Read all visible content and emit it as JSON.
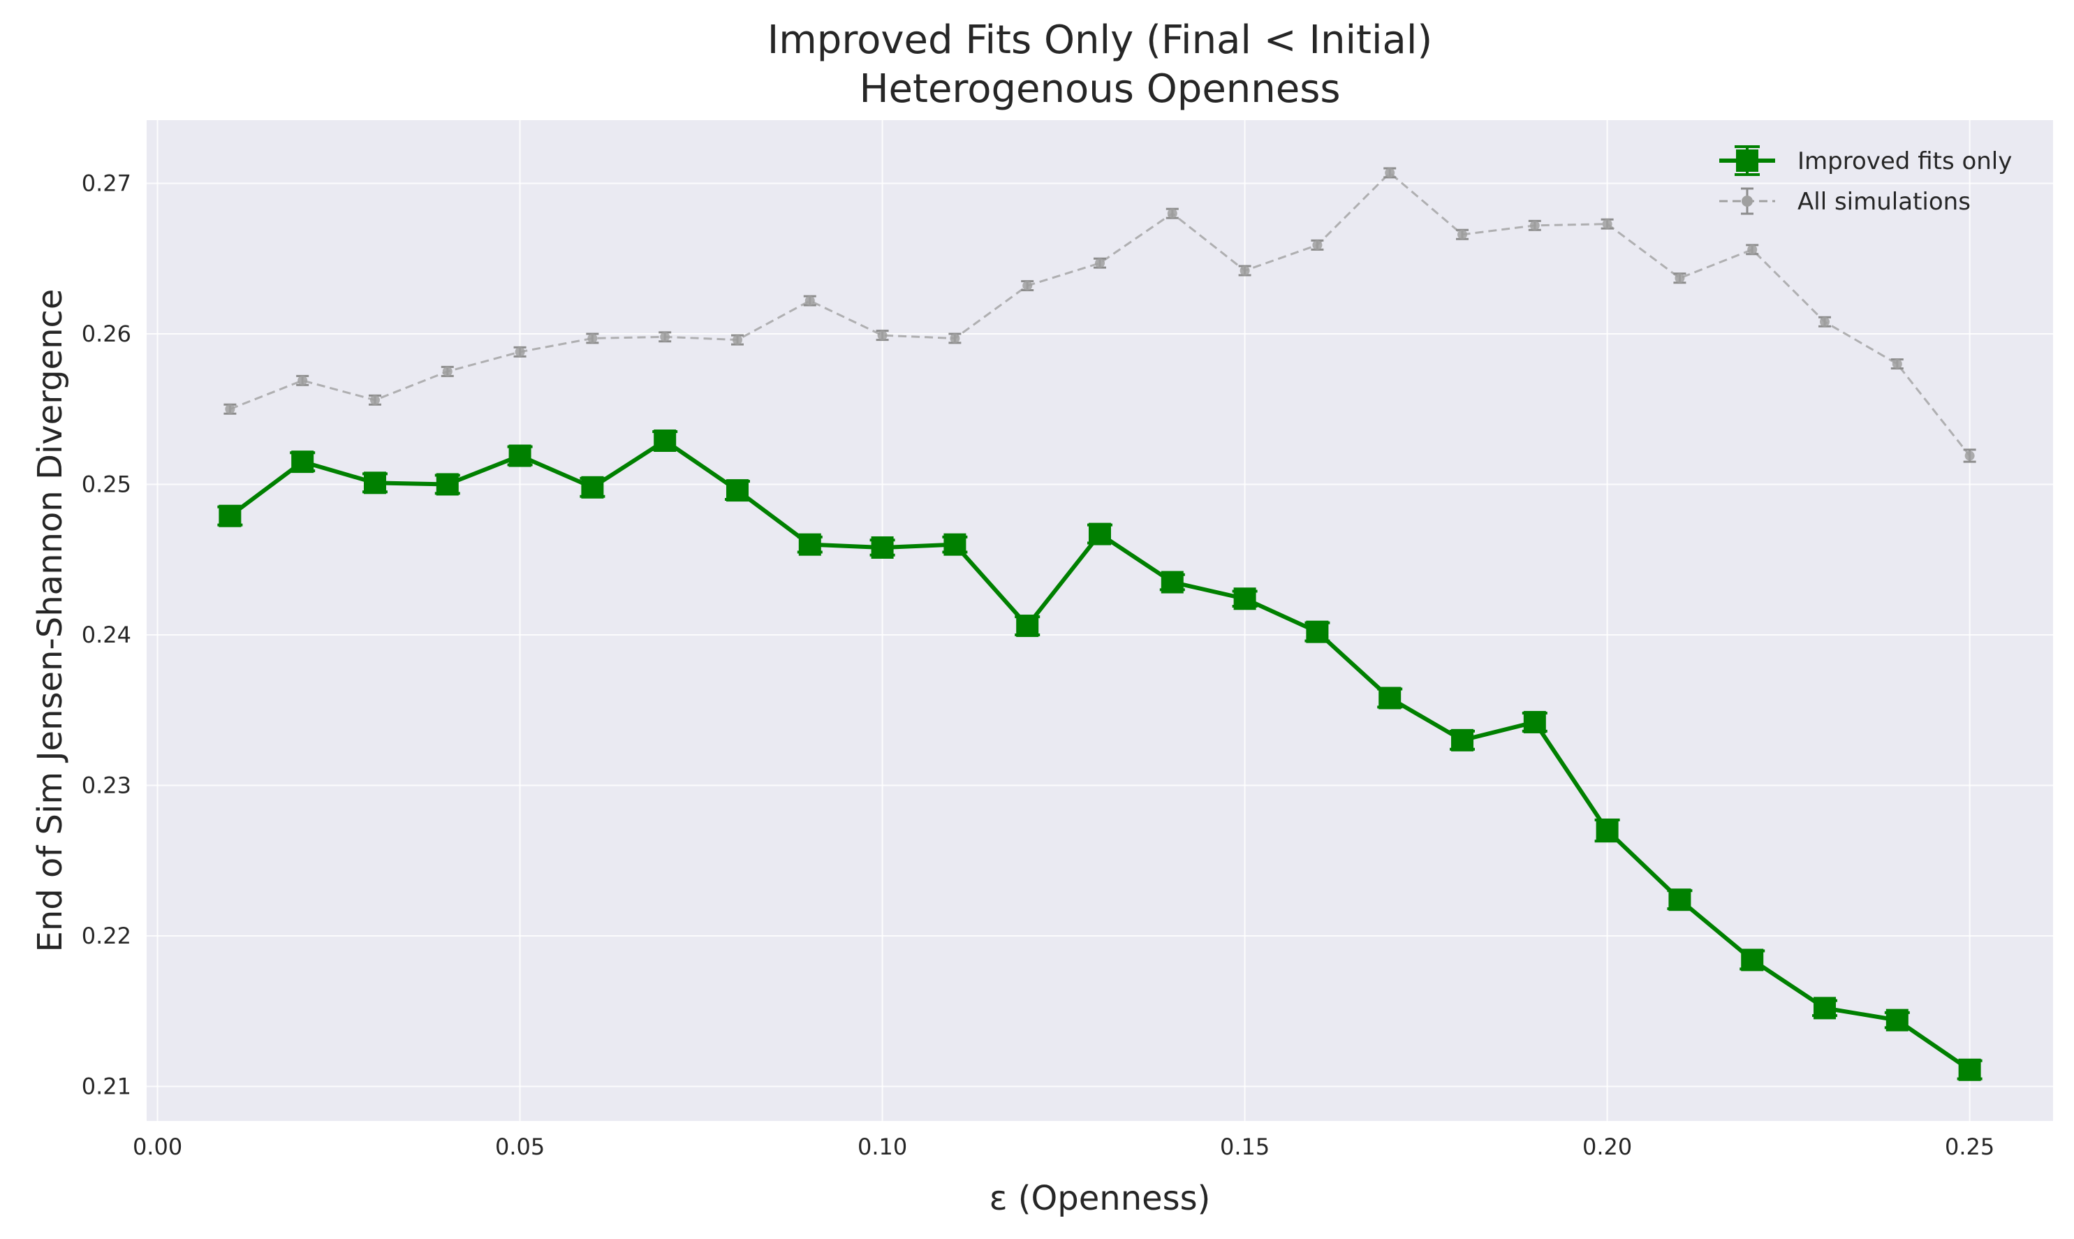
{
  "chart_data": {
    "type": "line",
    "title": "Improved Fits Only (Final < Initial)",
    "subtitle": "Heterogenous Openness",
    "xlabel": "ε (Openness)",
    "ylabel": "End of Sim Jensen-Shannon Divergence",
    "xlim": [
      -0.0015,
      0.2615
    ],
    "ylim": [
      0.2077,
      0.2742
    ],
    "xticks": [
      0.0,
      0.05,
      0.1,
      0.15,
      0.2,
      0.25
    ],
    "xtick_labels": [
      "0.00",
      "0.05",
      "0.10",
      "0.15",
      "0.20",
      "0.25"
    ],
    "yticks": [
      0.21,
      0.22,
      0.23,
      0.24,
      0.25,
      0.26,
      0.27
    ],
    "ytick_labels": [
      "0.21",
      "0.22",
      "0.23",
      "0.24",
      "0.25",
      "0.26",
      "0.27"
    ],
    "grid": true,
    "legend_position": "top-right",
    "background": "#eaeaf2",
    "series": [
      {
        "name": "Improved fits only",
        "color": "#008000",
        "style": "solid",
        "marker": "square",
        "x": [
          0.01,
          0.02,
          0.03,
          0.04,
          0.05,
          0.06,
          0.07,
          0.08,
          0.09,
          0.1,
          0.11,
          0.12,
          0.13,
          0.14,
          0.15,
          0.16,
          0.17,
          0.18,
          0.19,
          0.2,
          0.21,
          0.22,
          0.23,
          0.24,
          0.25
        ],
        "y": [
          0.2479,
          0.2515,
          0.2501,
          0.25,
          0.2519,
          0.2498,
          0.2529,
          0.2496,
          0.246,
          0.2458,
          0.246,
          0.2406,
          0.2467,
          0.2435,
          0.2424,
          0.2402,
          0.2358,
          0.233,
          0.2342,
          0.227,
          0.2224,
          0.2184,
          0.2152,
          0.2144,
          0.2111
        ],
        "err": [
          0.0006,
          0.0006,
          0.0006,
          0.0006,
          0.0006,
          0.0006,
          0.0006,
          0.0006,
          0.0005,
          0.0005,
          0.0005,
          0.0006,
          0.0006,
          0.0005,
          0.0005,
          0.0006,
          0.0006,
          0.0006,
          0.0006,
          0.0007,
          0.0006,
          0.0006,
          0.0005,
          0.0005,
          0.0006
        ]
      },
      {
        "name": "All simulations",
        "color": "#a0a0a0",
        "style": "dashed",
        "marker": "circle",
        "x": [
          0.01,
          0.02,
          0.03,
          0.04,
          0.05,
          0.06,
          0.07,
          0.08,
          0.09,
          0.1,
          0.11,
          0.12,
          0.13,
          0.14,
          0.15,
          0.16,
          0.17,
          0.18,
          0.19,
          0.2,
          0.21,
          0.22,
          0.23,
          0.24,
          0.25
        ],
        "y": [
          0.255,
          0.2569,
          0.2556,
          0.2575,
          0.2588,
          0.2597,
          0.2598,
          0.2596,
          0.2622,
          0.2599,
          0.2597,
          0.2632,
          0.2647,
          0.268,
          0.2642,
          0.2659,
          0.2707,
          0.2666,
          0.2672,
          0.2673,
          0.2637,
          0.2656,
          0.2608,
          0.258,
          0.2519
        ],
        "err": [
          0.0003,
          0.0003,
          0.0003,
          0.0003,
          0.0003,
          0.0003,
          0.0003,
          0.0003,
          0.0003,
          0.0003,
          0.0003,
          0.0003,
          0.0003,
          0.0003,
          0.0003,
          0.0003,
          0.0003,
          0.0003,
          0.0003,
          0.0003,
          0.0003,
          0.0003,
          0.0003,
          0.0003,
          0.0004
        ]
      }
    ]
  }
}
